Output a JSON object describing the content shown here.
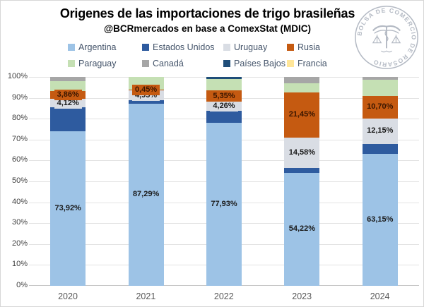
{
  "header": {
    "title": "Origenes de las importaciones de trigo brasileñas",
    "subtitle": "@BCRmercados en base a ComexStat (MDIC)"
  },
  "logo": {
    "ring_text": "BOLSA DE COMERCIO DE ROSARIO",
    "color": "#b4bac4"
  },
  "chart_data": {
    "type": "bar",
    "subtype": "stacked-100-percent",
    "title": "Origenes de las importaciones de trigo brasileñas",
    "subtitle": "@BCRmercados en base a ComexStat (MDIC)",
    "categories": [
      "2020",
      "2021",
      "2022",
      "2023",
      "2024"
    ],
    "series": [
      {
        "name": "Argentina",
        "color": "#9dc3e6",
        "values": [
          73.92,
          87.29,
          77.93,
          54.22,
          63.15
        ],
        "data_labels": [
          "73,92%",
          "87,29%",
          "77,93%",
          "54,22%",
          "63,15%"
        ],
        "label_color": "#1a1a1a"
      },
      {
        "name": "Estados Unidos",
        "color": "#2e5b9f",
        "values": [
          11.4,
          1.4,
          5.9,
          2.3,
          4.9
        ]
      },
      {
        "name": "Uruguay",
        "color": "#d9dde4",
        "values": [
          4.12,
          4.95,
          4.26,
          14.58,
          12.15
        ],
        "data_labels": [
          "4,12%",
          "4,95%",
          "4,26%",
          "14,58%",
          "12,15%"
        ],
        "label_color": "#1a1a1a"
      },
      {
        "name": "Rusia",
        "color": "#c55a11",
        "values": [
          3.86,
          0.45,
          5.35,
          21.45,
          10.7
        ],
        "data_labels": [
          "3,86%",
          "0,45%",
          "5,35%",
          "21,45%",
          "10,70%"
        ],
        "label_color": "#3a1600"
      },
      {
        "name": "Paraguay",
        "color": "#c5e0b4",
        "values": [
          4.7,
          5.91,
          5.46,
          4.5,
          7.8
        ]
      },
      {
        "name": "Canadá",
        "color": "#a6a6a6",
        "values": [
          2.0,
          0.0,
          0.0,
          2.95,
          1.3
        ]
      },
      {
        "name": "Países Bajos",
        "color": "#1f4e79",
        "values": [
          0.0,
          0.0,
          1.1,
          0.0,
          0.0
        ]
      },
      {
        "name": "Francia",
        "color": "#ffe699",
        "values": [
          0.0,
          0.0,
          0.0,
          0.0,
          0.0
        ]
      }
    ],
    "y_ticks": [
      "0%",
      "10%",
      "20%",
      "30%",
      "40%",
      "50%",
      "60%",
      "70%",
      "80%",
      "90%",
      "100%"
    ],
    "ylim": [
      0,
      100
    ],
    "grid": true,
    "legend_position": "top"
  }
}
